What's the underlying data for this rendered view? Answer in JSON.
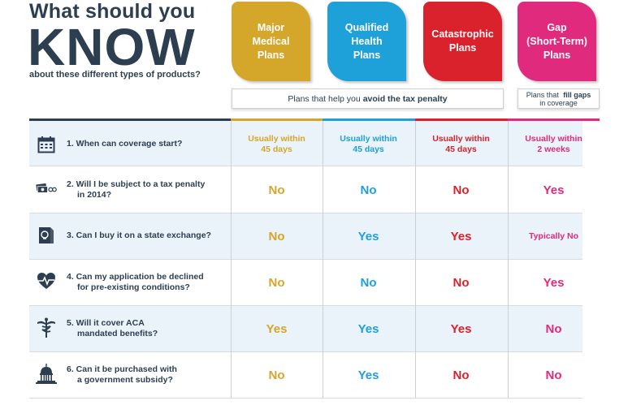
{
  "header": {
    "line1": "What should you",
    "line2": "KNOW",
    "line3": "about these different types of products?"
  },
  "colors": {
    "major": "#d4a62a",
    "qualified": "#1ea0d8",
    "catastrophic": "#d9222c",
    "gap": "#e02a7e",
    "navy": "#2d3e50"
  },
  "plans": [
    {
      "lines": [
        "Major",
        "Medical",
        "Plans"
      ]
    },
    {
      "lines": [
        "Qualified",
        "Health",
        "Plans"
      ]
    },
    {
      "lines": [
        "Catastrophic",
        "Plans"
      ]
    },
    {
      "lines": [
        "Gap",
        "(Short-Term)",
        "Plans"
      ]
    }
  ],
  "captions": {
    "avoid_prefix": "Plans that help you",
    "avoid_bold": "avoid the tax penalty",
    "gap_prefix": "Plans that",
    "gap_bold": "fill gaps",
    "gap_suffix": "in coverage"
  },
  "rows": [
    {
      "icon": "calendar-icon",
      "q1": "1. When can coverage start?",
      "q2": "",
      "answers": [
        [
          "Usually within",
          "45 days"
        ],
        [
          "Usually within",
          "45 days"
        ],
        [
          "Usually within",
          "45 days"
        ],
        [
          "Usually within",
          "2 weeks"
        ]
      ]
    },
    {
      "icon": "tax-penalty-icon",
      "q1": "2. Will I be subject to a tax penalty",
      "q2": "in 2014?",
      "answers": [
        "No",
        "No",
        "No",
        "Yes"
      ]
    },
    {
      "icon": "exchange-icon",
      "q1": "3. Can I buy it on a state exchange?",
      "q2": "",
      "answers": [
        "No",
        "Yes",
        "Yes",
        "Typically No"
      ]
    },
    {
      "icon": "heart-icon",
      "q1": "4. Can my application be declined",
      "q2": "for pre-existing conditions?",
      "answers": [
        "No",
        "No",
        "No",
        "Yes"
      ]
    },
    {
      "icon": "caduceus-icon",
      "q1": "5. Will it cover ACA",
      "q2": "mandated benefits?",
      "answers": [
        "Yes",
        "Yes",
        "Yes",
        "No"
      ]
    },
    {
      "icon": "capitol-icon",
      "q1": "6. Can it be purchased with",
      "q2": "a government subsidy?",
      "answers": [
        "No",
        "Yes",
        "No",
        "No"
      ]
    }
  ]
}
